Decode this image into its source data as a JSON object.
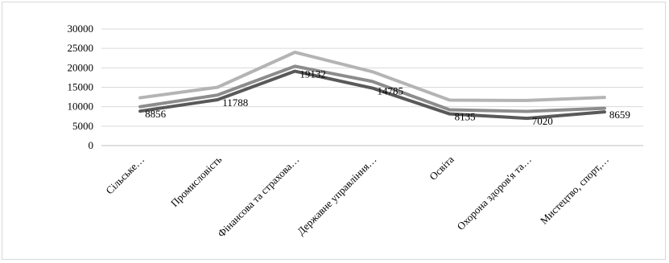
{
  "chart_data": {
    "type": "line",
    "title": "",
    "xlabel": "",
    "ylabel": "",
    "ylim": [
      0,
      30000
    ],
    "yticks": [
      0,
      5000,
      10000,
      15000,
      20000,
      25000,
      30000
    ],
    "grid": true,
    "legend": "none",
    "categories": [
      "Сільське…",
      "Промисловість",
      "Фінансова та страхова…",
      "Державне управління…",
      "Освіта",
      "Охорона здоров'я та…",
      "Мистецтво, спорт,…"
    ],
    "series": [
      {
        "values": [
          12300,
          15000,
          24000,
          19000,
          11700,
          11600,
          12400
        ],
        "color": "#b4b4b4"
      },
      {
        "values": [
          10000,
          13000,
          20400,
          16500,
          9200,
          8800,
          9600
        ],
        "color": "#8c8c8c"
      },
      {
        "values": [
          8856,
          11788,
          19132,
          14785,
          8135,
          7020,
          8659
        ],
        "color": "#595959",
        "data_labels": [
          "8856",
          "11788",
          "19132",
          "14785",
          "8135",
          "7020",
          "8659"
        ]
      }
    ]
  }
}
